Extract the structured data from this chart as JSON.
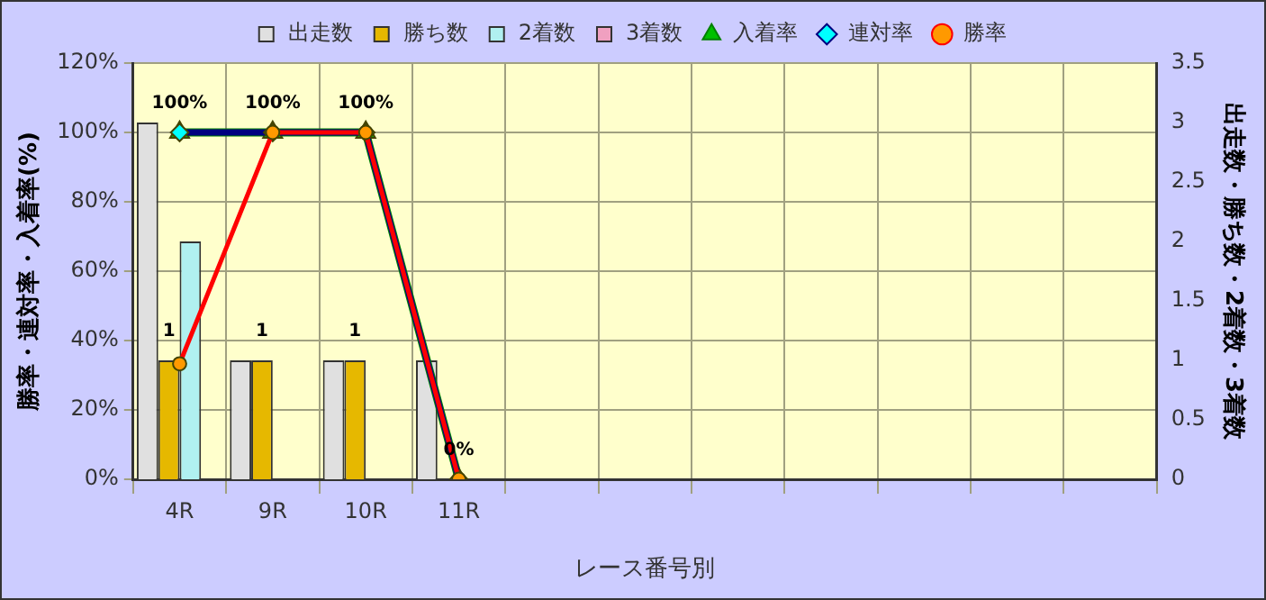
{
  "chart_data": {
    "type": "bar",
    "xlabel": "レース番号別",
    "ylabel": "勝率・連対率・入着率(%)",
    "y2label": "出走数・勝ち数・2着数・3着数",
    "categories": [
      "4R",
      "9R",
      "10R",
      "11R",
      null,
      null,
      null,
      null,
      null,
      null,
      null
    ],
    "series": [
      {
        "name": "出走数",
        "axis": "y2",
        "color": "#e0e0e0",
        "values": [
          3,
          1,
          1,
          1,
          null,
          null,
          null,
          null,
          null,
          null,
          null
        ]
      },
      {
        "name": "勝ち数",
        "axis": "y2",
        "color": "#e6b800",
        "values": [
          1,
          1,
          1,
          0,
          null,
          null,
          null,
          null,
          null,
          null,
          null
        ],
        "value_labels": [
          "1",
          "1",
          "1",
          null,
          null,
          null,
          null,
          null,
          null,
          null,
          null
        ]
      },
      {
        "name": "2着数",
        "axis": "y2",
        "color": "#b0f0f0",
        "values": [
          2,
          0,
          0,
          0,
          null,
          null,
          null,
          null,
          null,
          null,
          null
        ]
      },
      {
        "name": "3着数",
        "axis": "y2",
        "color": "#f0a0c0",
        "values": [
          0,
          0,
          0,
          0,
          null,
          null,
          null,
          null,
          null,
          null,
          null
        ]
      },
      {
        "name": "入着率",
        "type": "line",
        "color": "#008000",
        "marker": "triangle",
        "values": [
          100,
          100,
          100,
          0,
          null,
          null,
          null,
          null,
          null,
          null,
          null
        ],
        "value_labels": [
          "100%",
          "100%",
          "100%",
          "0%",
          null,
          null,
          null,
          null,
          null,
          null,
          null
        ]
      },
      {
        "name": "連対率",
        "type": "line",
        "color": "#000080",
        "marker": "diamond",
        "values": [
          100,
          100,
          100,
          0,
          null,
          null,
          null,
          null,
          null,
          null,
          null
        ]
      },
      {
        "name": "勝率",
        "type": "line",
        "color": "#ff0000",
        "marker": "circle",
        "values": [
          33.3,
          100,
          100,
          0,
          null,
          null,
          null,
          null,
          null,
          null,
          null
        ]
      }
    ],
    "ylim": [
      0,
      120
    ],
    "yticks": [
      {
        "value": 0,
        "label": "0%"
      },
      {
        "value": 20,
        "label": "20%"
      },
      {
        "value": 40,
        "label": "40%"
      },
      {
        "value": 60,
        "label": "60%"
      },
      {
        "value": 80,
        "label": "80%"
      },
      {
        "value": 100,
        "label": "100%"
      },
      {
        "value": 120,
        "label": "120%"
      }
    ],
    "y2lim": [
      0,
      3.5
    ],
    "y2ticks": [
      0,
      0.5,
      1,
      1.5,
      2,
      2.5,
      3,
      3.5
    ],
    "grid": true,
    "legend": "top"
  }
}
